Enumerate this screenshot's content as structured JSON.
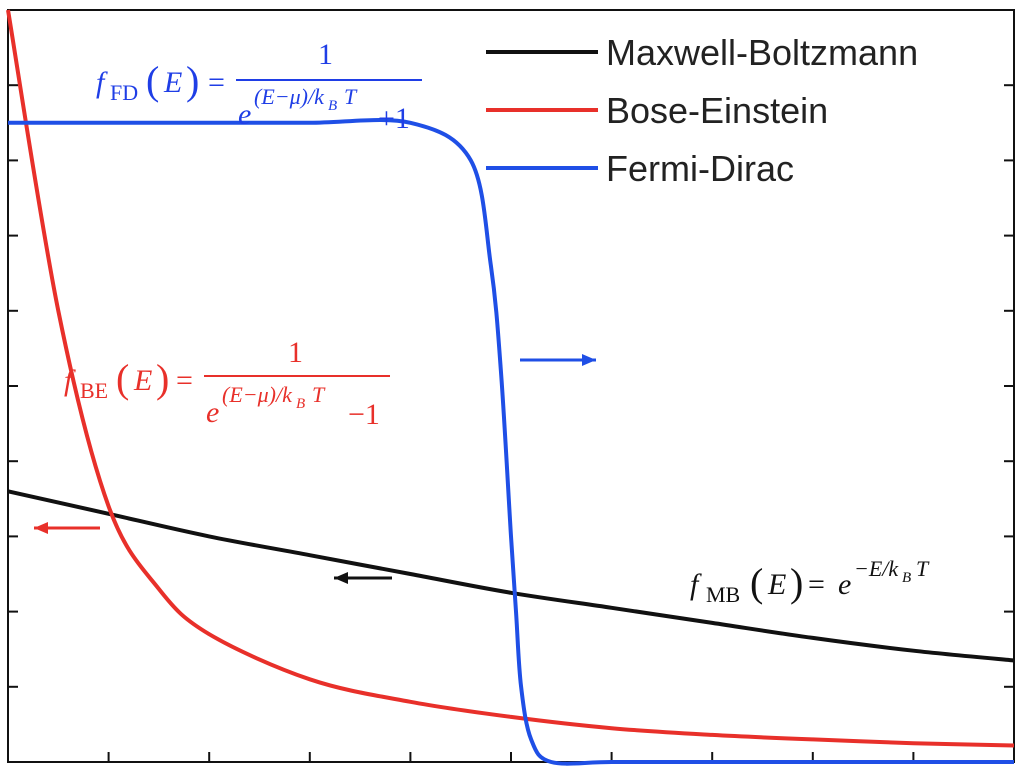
{
  "chart_data": {
    "type": "line",
    "title": "",
    "xlabel": "",
    "ylabel": "",
    "xlim": [
      0,
      10
    ],
    "ylim": [
      0,
      1
    ],
    "grid": false,
    "x_ticks": [
      1,
      2,
      3,
      4,
      5,
      6,
      7,
      8,
      9
    ],
    "y_ticks": [
      0.1,
      0.2,
      0.3,
      0.4,
      0.5,
      0.6,
      0.7,
      0.8,
      0.9
    ],
    "legend_position": "top-right",
    "series": [
      {
        "name": "Maxwell-Boltzmann",
        "color": "#111111",
        "x": [
          0,
          1,
          2,
          3,
          4,
          5,
          6,
          7,
          8,
          9,
          10
        ],
        "values": [
          0.36,
          0.33,
          0.3,
          0.275,
          0.25,
          0.225,
          0.205,
          0.185,
          0.165,
          0.148,
          0.135
        ]
      },
      {
        "name": "Bose-Einstein",
        "color": "#e8302a",
        "x": [
          0,
          0.5,
          1,
          1.5,
          2,
          3,
          4,
          5,
          6,
          7,
          8,
          9,
          10
        ],
        "values": [
          1.0,
          0.6,
          0.34,
          0.23,
          0.17,
          0.11,
          0.08,
          0.06,
          0.045,
          0.036,
          0.03,
          0.025,
          0.022
        ]
      },
      {
        "name": "Fermi-Dirac",
        "color": "#1f4fe6",
        "x": [
          0,
          1,
          2,
          3,
          4,
          4.6,
          4.8,
          4.9,
          5.0,
          5.05,
          5.1,
          5.2,
          5.4,
          6,
          7,
          8,
          9,
          10
        ],
        "values": [
          0.85,
          0.85,
          0.85,
          0.85,
          0.85,
          0.8,
          0.66,
          0.52,
          0.3,
          0.2,
          0.1,
          0.03,
          0.0,
          0.0,
          0.0,
          0.0,
          0.0,
          0.0
        ]
      }
    ],
    "annotations": {
      "fd": {
        "f": "f",
        "sub": "FD",
        "arg": "E",
        "eq": "=",
        "num": "1",
        "base": "e",
        "exp": "(E−μ)/k",
        "exp_sub": "B",
        "exp_tail": "T",
        "den_tail": "+1",
        "color": "#1f3ee6"
      },
      "be": {
        "f": "f",
        "sub": "BE",
        "arg": "E",
        "eq": "=",
        "num": "1",
        "base": "e",
        "exp": "(E−μ)/k",
        "exp_sub": "B",
        "exp_tail": "T",
        "den_tail": "−1",
        "color": "#e8302a"
      },
      "mb": {
        "f": "f",
        "sub": "MB",
        "arg": "E",
        "eq": "=",
        "base": "e",
        "exp": "−E/k",
        "exp_sub": "B",
        "exp_tail": "T",
        "color": "#111111"
      }
    },
    "arrows": [
      {
        "series": "Fermi-Dirac",
        "direction": "right",
        "color": "#1f4fe6"
      },
      {
        "series": "Bose-Einstein",
        "direction": "left",
        "color": "#e8302a"
      },
      {
        "series": "Maxwell-Boltzmann",
        "direction": "left",
        "color": "#111111"
      }
    ]
  }
}
